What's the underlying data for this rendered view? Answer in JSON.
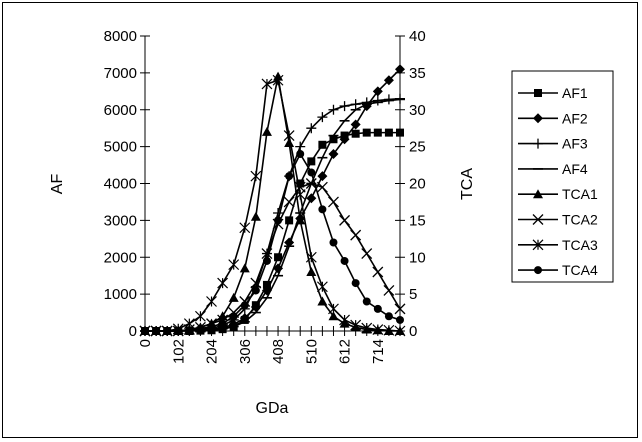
{
  "chart_data": {
    "type": "line",
    "xlabel": "GDa",
    "ylabel_left": "AF",
    "ylabel_right": "TCA",
    "ylim_left": [
      0,
      8000
    ],
    "ylim_right": [
      0,
      40
    ],
    "xlim": [
      0,
      782
    ],
    "y_ticks_left": [
      "0",
      "1000",
      "2000",
      "3000",
      "4000",
      "5000",
      "6000",
      "7000",
      "8000"
    ],
    "y_ticks_right": [
      "0",
      "5",
      "10",
      "15",
      "20",
      "25",
      "30",
      "35",
      "40"
    ],
    "x_tick_labels": [
      "0",
      "102",
      "204",
      "306",
      "408",
      "510",
      "612",
      "714"
    ],
    "x": [
      0,
      34,
      68,
      102,
      136,
      170,
      204,
      238,
      272,
      306,
      340,
      374,
      408,
      442,
      476,
      510,
      544,
      578,
      612,
      646,
      680,
      714,
      748,
      782
    ],
    "grid": false,
    "legend_position": "right",
    "series": [
      {
        "name": "AF1",
        "axis": "left",
        "marker": "square",
        "values": [
          0,
          0,
          0,
          0,
          0,
          10,
          20,
          50,
          120,
          300,
          700,
          1250,
          2000,
          3000,
          4000,
          4600,
          5050,
          5200,
          5300,
          5350,
          5380,
          5380,
          5380,
          5380
        ]
      },
      {
        "name": "AF2",
        "axis": "left",
        "marker": "diamond",
        "values": [
          0,
          0,
          0,
          0,
          10,
          20,
          40,
          90,
          180,
          350,
          650,
          1100,
          1700,
          2400,
          3050,
          3600,
          4200,
          4800,
          5200,
          5600,
          6100,
          6500,
          6800,
          7100
        ]
      },
      {
        "name": "AF3",
        "axis": "left",
        "marker": "plus",
        "values": [
          0,
          0,
          0,
          0,
          10,
          30,
          70,
          150,
          300,
          600,
          1200,
          2100,
          3200,
          4200,
          5000,
          5500,
          5800,
          6000,
          6100,
          6150,
          6200,
          6250,
          6280,
          6300
        ]
      },
      {
        "name": "AF4",
        "axis": "left",
        "marker": "dash",
        "values": [
          0,
          0,
          0,
          0,
          5,
          15,
          30,
          60,
          120,
          250,
          500,
          900,
          1500,
          2300,
          3200,
          4000,
          4700,
          5300,
          5700,
          6000,
          6150,
          6200,
          6250,
          6280
        ]
      },
      {
        "name": "TCA1",
        "axis": "right",
        "marker": "triangle",
        "values": [
          0,
          0,
          0,
          0,
          0.2,
          0.5,
          1,
          2,
          4.5,
          8.5,
          15.5,
          27,
          34.5,
          25.5,
          15,
          8,
          4,
          2,
          1,
          0.5,
          0.2,
          0.1,
          0,
          0
        ]
      },
      {
        "name": "TCA2",
        "axis": "right",
        "marker": "x",
        "values": [
          0,
          0,
          0,
          0,
          0.2,
          0.5,
          1,
          1.5,
          2.5,
          4,
          6.5,
          10.5,
          14.5,
          17.5,
          19.5,
          20,
          19.5,
          17.5,
          15,
          13,
          10.5,
          8,
          5.5,
          3
        ]
      },
      {
        "name": "TCA3",
        "axis": "right",
        "marker": "asterisk",
        "values": [
          0,
          0,
          0,
          0.3,
          1,
          2,
          4,
          6.5,
          9,
          14,
          21,
          33.5,
          34,
          26.5,
          18.5,
          10,
          6,
          3,
          1.5,
          0.8,
          0.4,
          0.2,
          0.1,
          0
        ]
      },
      {
        "name": "TCA4",
        "axis": "right",
        "marker": "circle",
        "values": [
          0,
          0,
          0,
          0,
          0.1,
          0.3,
          0.6,
          1,
          2,
          3.5,
          5.5,
          9.5,
          15,
          21,
          24,
          21.5,
          16.5,
          12,
          9.5,
          6.5,
          4,
          3,
          2,
          1.5
        ]
      }
    ]
  }
}
